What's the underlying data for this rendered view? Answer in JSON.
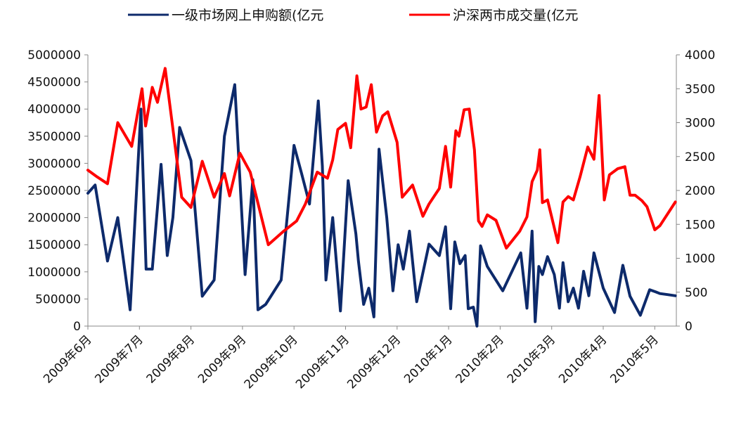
{
  "chart_data": {
    "type": "line",
    "legend": {
      "placement": "top",
      "entries": [
        {
          "label": "一级市场网上申购额(亿元",
          "color": "#0d2a6b",
          "axis": "left"
        },
        {
          "label": "沪深两市成交量(亿元",
          "color": "#ff0000",
          "axis": "right"
        }
      ]
    },
    "y_left": {
      "min": 0,
      "max": 5000000,
      "step": 500000,
      "ticks": [
        "0",
        "500000",
        "1000000",
        "1500000",
        "2000000",
        "2500000",
        "3000000",
        "3500000",
        "4000000",
        "4500000",
        "5000000"
      ]
    },
    "y_right": {
      "min": 0,
      "max": 4000,
      "step": 500,
      "ticks": [
        "0",
        "500",
        "1000",
        "1500",
        "2000",
        "2500",
        "3000",
        "3500",
        "4000"
      ]
    },
    "x_range": [
      0,
      11.4
    ],
    "x_ticks": [
      "2009年6月",
      "2009年7月",
      "2009年8月",
      "2009年9月",
      "2009年10月",
      "2009年11月",
      "2009年12月",
      "2010年1月",
      "2010年2月",
      "2010年3月",
      "2010年4月",
      "2010年5月"
    ],
    "grid": false,
    "series": [
      {
        "name": "一级市场网上申购额(亿元",
        "axis": "left",
        "color": "#0d2a6b",
        "x": [
          0,
          0.14,
          0.38,
          0.58,
          0.82,
          1.03,
          1.13,
          1.25,
          1.42,
          1.54,
          1.65,
          1.78,
          2.0,
          2.22,
          2.45,
          2.65,
          2.85,
          3.05,
          3.2,
          3.3,
          3.45,
          3.75,
          4.0,
          4.15,
          4.3,
          4.47,
          4.55,
          4.62,
          4.75,
          4.9,
          5.05,
          5.2,
          5.25,
          5.35,
          5.45,
          5.55,
          5.65,
          5.8,
          5.92,
          6.02,
          6.12,
          6.24,
          6.38,
          6.62,
          6.82,
          6.94,
          7.04,
          7.12,
          7.22,
          7.32,
          7.38,
          7.48,
          7.55,
          7.62,
          7.75,
          8.05,
          8.4,
          8.52,
          8.62,
          8.68,
          8.75,
          8.82,
          8.92,
          9.05,
          9.15,
          9.22,
          9.32,
          9.42,
          9.52,
          9.62,
          9.72,
          9.82,
          10.0,
          10.22,
          10.38,
          10.52,
          10.72,
          10.82,
          10.9,
          11.02,
          11.1,
          11.25,
          11.4
        ],
        "y": [
          2450000,
          2600000,
          1200000,
          2000000,
          300000,
          4000000,
          1050000,
          1050000,
          2980000,
          1300000,
          2000000,
          3660000,
          3050000,
          550000,
          850000,
          3500000,
          4450000,
          950000,
          2700000,
          300000,
          400000,
          850000,
          3330000,
          2800000,
          2250000,
          4150000,
          2950000,
          850000,
          2000000,
          280000,
          2680000,
          1700000,
          1200000,
          400000,
          700000,
          170000,
          3260000,
          2000000,
          650000,
          1500000,
          1050000,
          1750000,
          450000,
          1510000,
          1300000,
          1830000,
          320000,
          1550000,
          1150000,
          1300000,
          320000,
          350000,
          0,
          1480000,
          1100000,
          650000,
          1350000,
          330000,
          1750000,
          80000,
          1100000,
          950000,
          1280000,
          950000,
          330000,
          1170000,
          450000,
          700000,
          330000,
          1010000,
          560000,
          1350000,
          700000,
          250000,
          1120000,
          550000,
          200000,
          460000,
          670000,
          630000,
          600000,
          580000,
          560000
        ]
      },
      {
        "name": "沪深两市成交量(亿元",
        "axis": "right",
        "color": "#ff0000",
        "x": [
          0,
          0.18,
          0.38,
          0.58,
          0.85,
          1.05,
          1.12,
          1.25,
          1.35,
          1.5,
          1.82,
          2.0,
          2.22,
          2.45,
          2.65,
          2.75,
          2.95,
          3.15,
          3.5,
          3.8,
          4.05,
          4.22,
          4.45,
          4.65,
          4.75,
          4.85,
          5.0,
          5.1,
          5.22,
          5.3,
          5.4,
          5.5,
          5.6,
          5.72,
          5.82,
          6.0,
          6.1,
          6.3,
          6.5,
          6.62,
          6.82,
          6.94,
          7.04,
          7.14,
          7.2,
          7.3,
          7.4,
          7.5,
          7.58,
          7.65,
          7.75,
          7.92,
          8.12,
          8.38,
          8.52,
          8.62,
          8.72,
          8.77,
          8.82,
          8.92,
          9.05,
          9.12,
          9.22,
          9.32,
          9.42,
          9.55,
          9.7,
          9.82,
          9.92,
          10.02,
          10.12,
          10.28,
          10.42,
          10.52,
          10.62,
          10.75,
          10.85,
          11.0,
          11.1,
          11.22,
          11.4
        ],
        "y": [
          2300,
          2200,
          2100,
          3000,
          2650,
          3500,
          2950,
          3520,
          3300,
          3800,
          1900,
          1750,
          2430,
          1900,
          2250,
          1920,
          2550,
          2270,
          1200,
          1400,
          1550,
          1800,
          2270,
          2180,
          2450,
          2900,
          2990,
          2630,
          3690,
          3200,
          3230,
          3560,
          2860,
          3100,
          3160,
          2710,
          1900,
          2080,
          1620,
          1800,
          2030,
          2650,
          2050,
          2880,
          2800,
          3190,
          3200,
          2600,
          1550,
          1470,
          1640,
          1560,
          1150,
          1400,
          1610,
          2130,
          2300,
          2600,
          1820,
          1860,
          1450,
          1230,
          1830,
          1910,
          1860,
          2200,
          2640,
          2460,
          3400,
          1860,
          2230,
          2320,
          2350,
          1930,
          1930,
          1850,
          1760,
          1420,
          1480,
          1620,
          1830
        ]
      }
    ]
  }
}
